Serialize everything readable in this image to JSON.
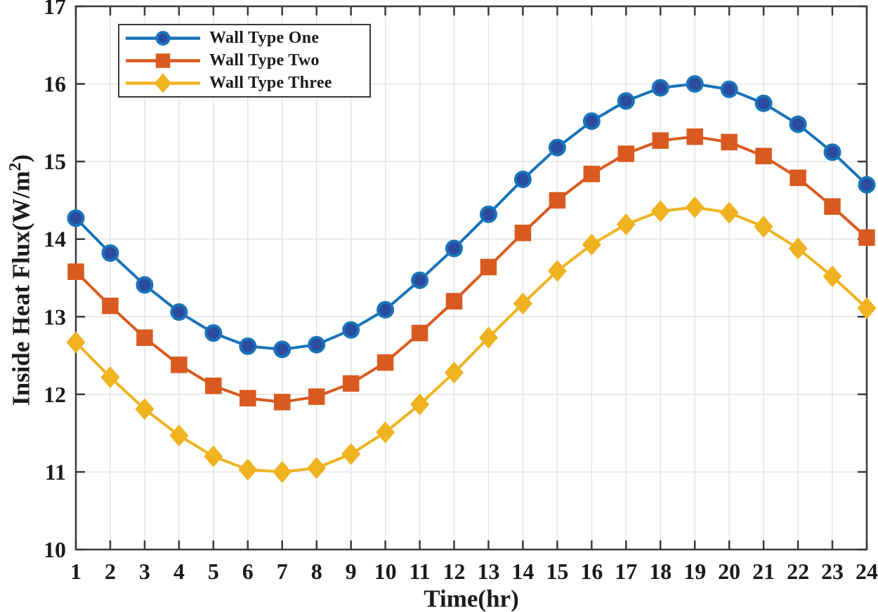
{
  "figure": {
    "background": "#ffffff",
    "axis_color": "#3a3a3a",
    "grid_color": "#e2e2e2",
    "text_color": "#1b1b1b"
  },
  "chart_data": {
    "type": "line",
    "title": "",
    "xlabel": "Time(hr)",
    "ylabel": "Inside Heat Flux(W/m2)",
    "ylabel_parts": {
      "prefix": "Inside Heat Flux(W/m",
      "sup": "2",
      "suffix": ")"
    },
    "xlim": [
      1,
      24
    ],
    "ylim": [
      10,
      17
    ],
    "x_ticks": [
      1,
      2,
      3,
      4,
      5,
      6,
      7,
      8,
      9,
      10,
      11,
      12,
      13,
      14,
      15,
      16,
      17,
      18,
      19,
      20,
      21,
      22,
      23,
      24
    ],
    "y_ticks": [
      10,
      11,
      12,
      13,
      14,
      15,
      16,
      17
    ],
    "grid": true,
    "legend_position": "top-left",
    "x": [
      1,
      2,
      3,
      4,
      5,
      6,
      7,
      8,
      9,
      10,
      11,
      12,
      13,
      14,
      15,
      16,
      17,
      18,
      19,
      20,
      21,
      22,
      23,
      24
    ],
    "series": [
      {
        "name": "Wall Type One",
        "marker": "circle",
        "line_color": "#1a73ba",
        "marker_fill": "#2c4b9e",
        "values": [
          14.27,
          13.82,
          13.41,
          13.06,
          12.79,
          12.62,
          12.58,
          12.64,
          12.83,
          13.09,
          13.47,
          13.88,
          14.32,
          14.77,
          15.18,
          15.52,
          15.78,
          15.95,
          16.0,
          15.93,
          15.75,
          15.48,
          15.12,
          14.7
        ]
      },
      {
        "name": "Wall Type Two",
        "marker": "square",
        "line_color": "#d95a20",
        "marker_fill": "#d95a20",
        "values": [
          13.58,
          13.14,
          12.73,
          12.38,
          12.11,
          11.95,
          11.9,
          11.97,
          12.14,
          12.41,
          12.79,
          13.2,
          13.64,
          14.08,
          14.5,
          14.84,
          15.1,
          15.27,
          15.32,
          15.25,
          15.07,
          14.79,
          14.42,
          14.02
        ]
      },
      {
        "name": "Wall Type Three",
        "marker": "diamond",
        "line_color": "#efb320",
        "marker_fill": "#efb320",
        "values": [
          12.67,
          12.22,
          11.81,
          11.47,
          11.2,
          11.03,
          11.0,
          11.05,
          11.23,
          11.51,
          11.87,
          12.28,
          12.73,
          13.17,
          13.59,
          13.93,
          14.19,
          14.36,
          14.41,
          14.34,
          14.16,
          13.88,
          13.52,
          13.11
        ]
      }
    ]
  }
}
